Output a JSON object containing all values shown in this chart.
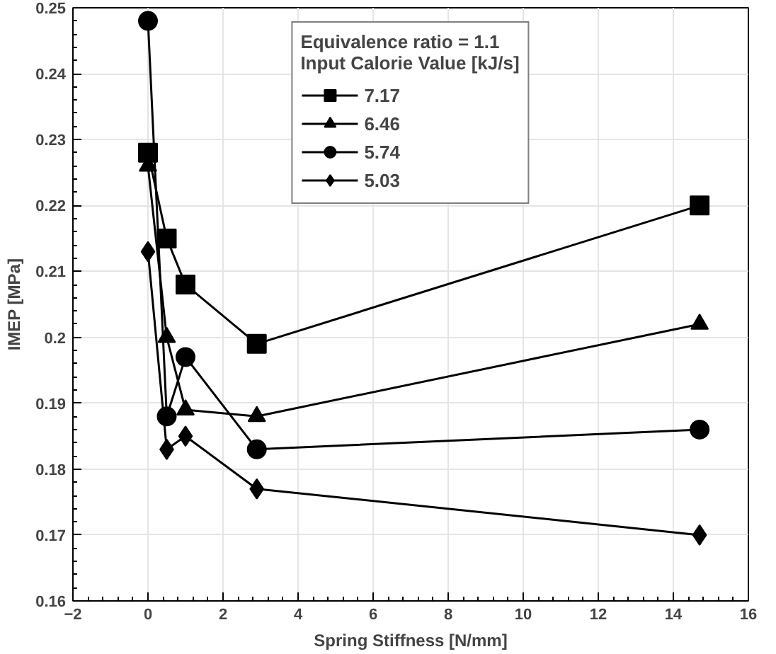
{
  "chart_data": {
    "type": "line",
    "xlabel": "Spring Stiffness [N/mm]",
    "ylabel": "IMEP [MPa]",
    "legend_title": "Equivalence ratio = 1.1\nInput Calorie Value [kJ/s]",
    "x": [
      0,
      0.5,
      1,
      2.9,
      14.7
    ],
    "series": [
      {
        "name": "7.17",
        "color": "#000000",
        "marker": "square",
        "values": [
          0.228,
          0.215,
          0.208,
          0.199,
          0.22
        ]
      },
      {
        "name": "6.46",
        "color": "#000000",
        "marker": "triangle",
        "values": [
          0.226,
          0.2,
          0.189,
          0.188,
          0.202
        ]
      },
      {
        "name": "5.74",
        "color": "#000000",
        "marker": "circle",
        "values": [
          0.248,
          0.188,
          0.197,
          0.183,
          0.186
        ]
      },
      {
        "name": "5.03",
        "color": "#000000",
        "marker": "diamond",
        "values": [
          0.213,
          0.183,
          0.185,
          0.177,
          0.17
        ]
      }
    ],
    "xlim": [
      -2,
      16
    ],
    "xticks": [
      -2,
      0,
      2,
      4,
      6,
      8,
      10,
      12,
      14,
      16
    ],
    "ylim": [
      0.16,
      0.25
    ],
    "yticks": [
      0.16,
      0.17,
      0.18,
      0.19,
      0.2,
      0.21,
      0.22,
      0.23,
      0.24,
      0.25
    ],
    "grid": true,
    "legend": "top"
  }
}
